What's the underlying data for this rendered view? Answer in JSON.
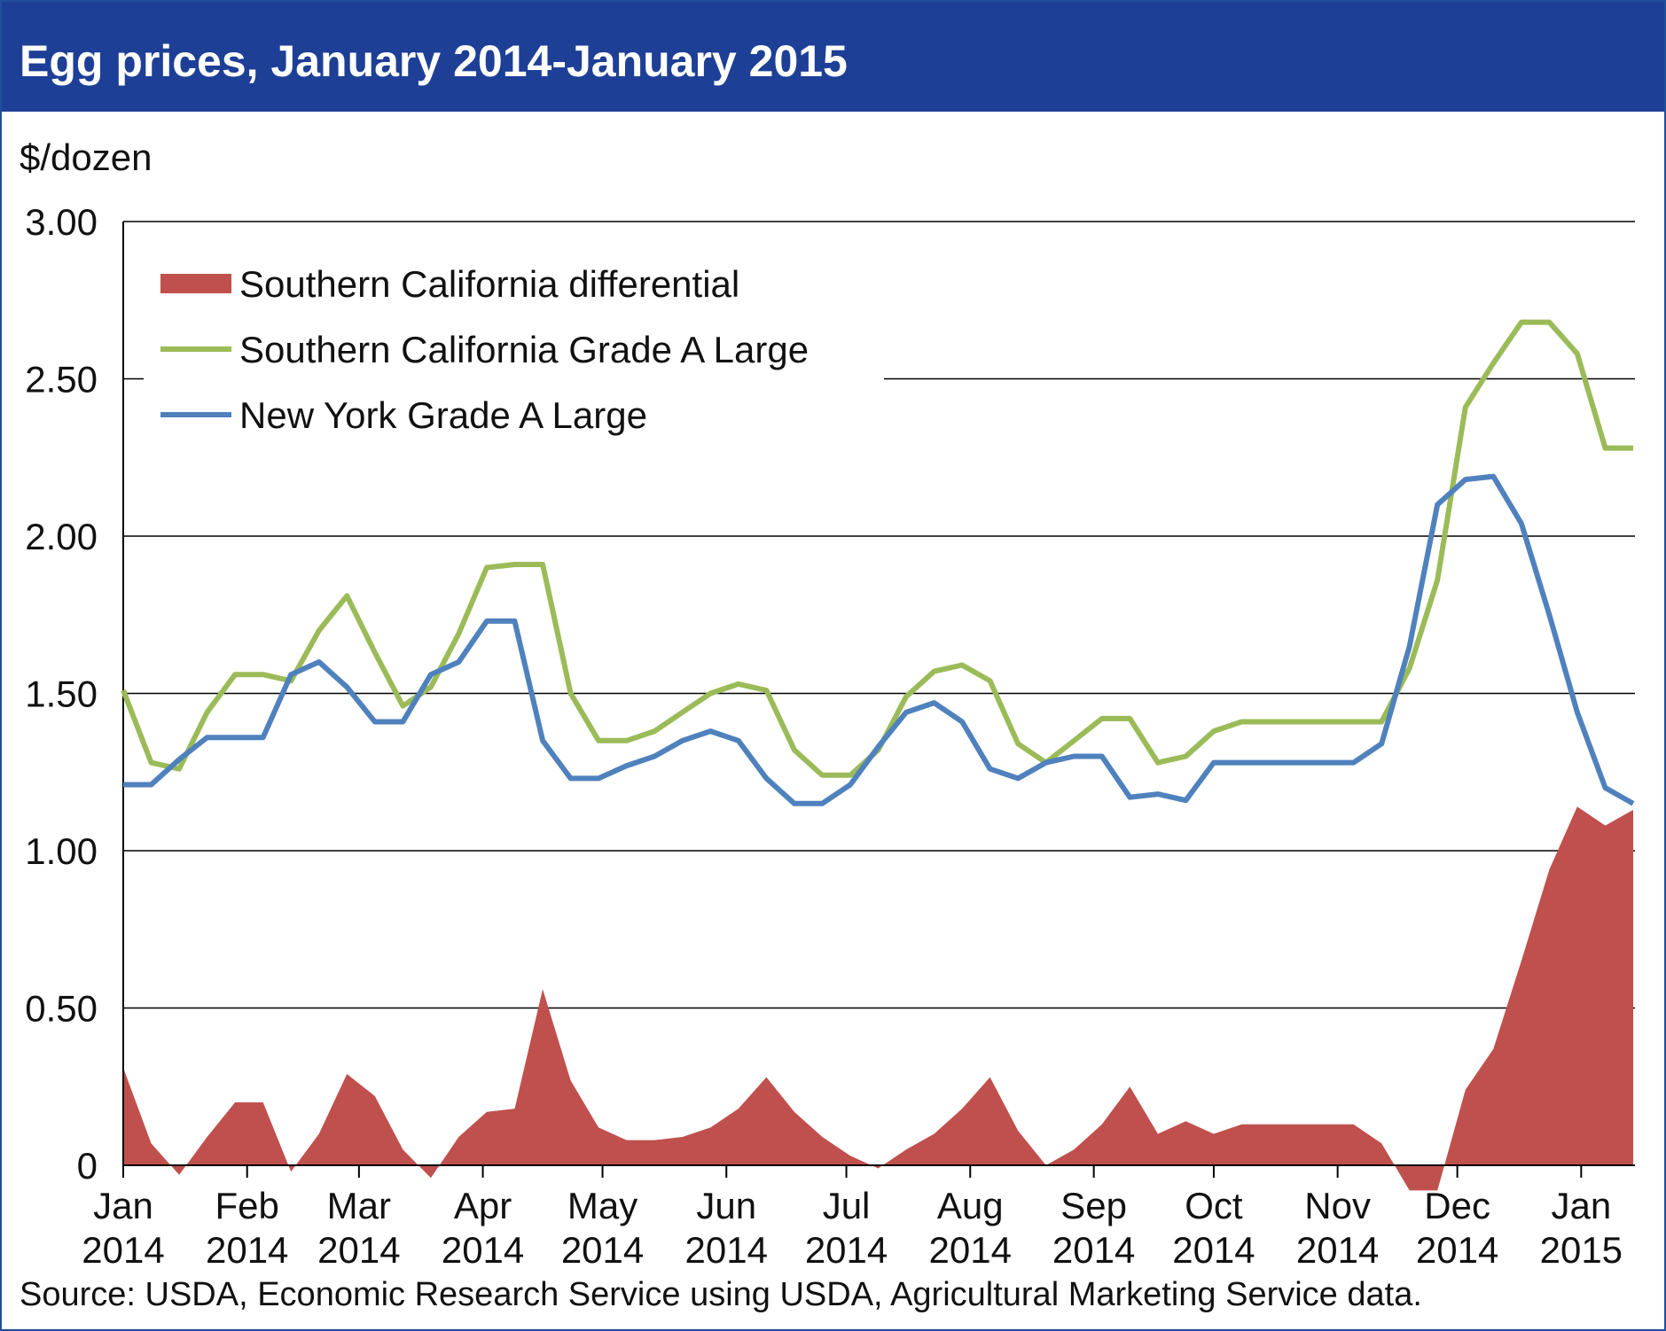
{
  "chart_data": {
    "type": "line",
    "title": "Egg prices, January 2014-January 2015",
    "ylabel": "$/dozen",
    "ylim": [
      0,
      3
    ],
    "y_ticks": [
      "3.00",
      "2.50",
      "2.00",
      "1.50",
      "1.00",
      "0.50",
      "0"
    ],
    "y_tick_values": [
      3,
      2.5,
      2,
      1.5,
      1,
      0.5,
      0
    ],
    "x_ticks": [
      {
        "month": "Jan",
        "year": "2014",
        "week": 0
      },
      {
        "month": "Feb",
        "year": "2014",
        "week": 4.43
      },
      {
        "month": "Mar",
        "year": "2014",
        "week": 8.43
      },
      {
        "month": "Apr",
        "year": "2014",
        "week": 12.86
      },
      {
        "month": "May",
        "year": "2014",
        "week": 17.14
      },
      {
        "month": "Jun",
        "year": "2014",
        "week": 21.57
      },
      {
        "month": "Jul",
        "year": "2014",
        "week": 25.86
      },
      {
        "month": "Aug",
        "year": "2014",
        "week": 30.29
      },
      {
        "month": "Sep",
        "year": "2014",
        "week": 34.71
      },
      {
        "month": "Oct",
        "year": "2014",
        "week": 39
      },
      {
        "month": "Nov",
        "year": "2014",
        "week": 43.43
      },
      {
        "month": "Dec",
        "year": "2014",
        "week": 47.71
      },
      {
        "month": "Jan",
        "year": "2015",
        "week": 52.14
      }
    ],
    "grid": "horizontal",
    "legend_position": "top-left",
    "series": [
      {
        "name": "Southern California differential",
        "style": "area",
        "color": "#c0504d",
        "values": [
          0.31,
          0.07,
          -0.03,
          0.09,
          0.2,
          0.2,
          -0.02,
          0.1,
          0.29,
          0.22,
          0.05,
          -0.04,
          0.09,
          0.17,
          0.18,
          0.56,
          0.27,
          0.12,
          0.08,
          0.08,
          0.09,
          0.12,
          0.18,
          0.28,
          0.17,
          0.09,
          0.03,
          -0.01,
          0.05,
          0.1,
          0.18,
          0.28,
          0.11,
          0.0,
          0.05,
          0.13,
          0.25,
          0.1,
          0.14,
          0.1,
          0.13,
          0.13,
          0.13,
          0.13,
          0.13,
          0.07,
          -0.08,
          -0.08,
          0.24,
          0.37,
          0.65,
          0.94,
          1.14,
          1.08,
          1.13
        ]
      },
      {
        "name": "Southern California Grade A Large",
        "style": "line",
        "color": "#9bbb59",
        "values": [
          1.51,
          1.28,
          1.26,
          1.44,
          1.56,
          1.56,
          1.54,
          1.7,
          1.81,
          1.63,
          1.46,
          1.52,
          1.69,
          1.9,
          1.91,
          1.91,
          1.5,
          1.35,
          1.35,
          1.38,
          1.44,
          1.5,
          1.53,
          1.51,
          1.32,
          1.24,
          1.24,
          1.32,
          1.49,
          1.57,
          1.59,
          1.54,
          1.34,
          1.28,
          1.35,
          1.42,
          1.42,
          1.28,
          1.3,
          1.38,
          1.41,
          1.41,
          1.41,
          1.41,
          1.41,
          1.41,
          1.58,
          1.86,
          2.41,
          2.55,
          2.68,
          2.68,
          2.58,
          2.28,
          2.28
        ]
      },
      {
        "name": "New York Grade A Large",
        "style": "line",
        "color": "#4f81bd",
        "values": [
          1.21,
          1.21,
          1.29,
          1.36,
          1.36,
          1.36,
          1.56,
          1.6,
          1.52,
          1.41,
          1.41,
          1.56,
          1.6,
          1.73,
          1.73,
          1.35,
          1.23,
          1.23,
          1.27,
          1.3,
          1.35,
          1.38,
          1.35,
          1.23,
          1.15,
          1.15,
          1.21,
          1.33,
          1.44,
          1.47,
          1.41,
          1.26,
          1.23,
          1.28,
          1.3,
          1.3,
          1.17,
          1.18,
          1.16,
          1.28,
          1.28,
          1.28,
          1.28,
          1.28,
          1.28,
          1.34,
          1.65,
          2.1,
          2.18,
          2.19,
          2.04,
          1.75,
          1.44,
          1.2,
          1.15
        ]
      }
    ]
  },
  "source_note": "Source: USDA, Economic Research Service using USDA, Agricultural Marketing Service data."
}
